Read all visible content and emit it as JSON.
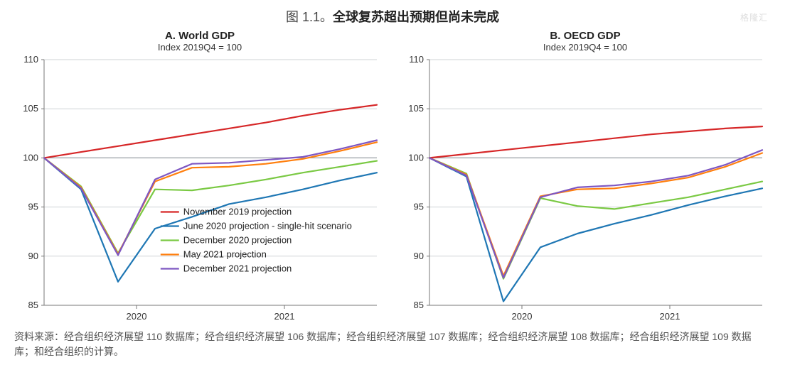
{
  "figure": {
    "prefix": "图 1.1。",
    "title": "全球复苏超出预期但尚未完成"
  },
  "watermark": "格隆汇",
  "footnote": "资料来源：经合组织经济展望 110 数据库；经合组织经济展望 106 数据库；经合组织经济展望 107 数据库；经合组织经济展望 108 数据库；经合组织经济展望 109 数据库；和经合组织的计算。",
  "chart_style": {
    "background_color": "#ffffff",
    "axis_color": "#777777",
    "grid_color": "#cfd3d6",
    "ref_line_color": "#9aa0a4",
    "tick_font_size": 13,
    "tick_color": "#333333",
    "legend_font_size": 13,
    "legend_text_color": "#222222",
    "line_width": 2.2,
    "ylim": [
      85,
      110
    ],
    "ytick_step": 5,
    "reference_y": 100,
    "domain_n": 9,
    "x_tick_positions": [
      2.5,
      6.5
    ],
    "x_tick_labels": [
      "2020",
      "2021"
    ]
  },
  "series_meta": [
    {
      "key": "nov2019",
      "label": "November 2019 projection",
      "color": "#d62728"
    },
    {
      "key": "jun2020",
      "label": "June 2020 projection - single-hit scenario",
      "color": "#1f77b4"
    },
    {
      "key": "dec2020",
      "label": "December 2020 projection",
      "color": "#7ac943"
    },
    {
      "key": "may2021",
      "label": "May 2021 projection",
      "color": "#ff7f0e"
    },
    {
      "key": "dec2021",
      "label": "December 2021 projection",
      "color": "#7e57c2"
    }
  ],
  "panels": [
    {
      "id": "world",
      "title": "A. World GDP",
      "subtitle": "Index 2019Q4 = 100",
      "show_legend": true,
      "series": {
        "nov2019": [
          100,
          100.6,
          101.2,
          101.8,
          102.4,
          103.0,
          103.6,
          104.3,
          104.9,
          105.4
        ],
        "jun2020": [
          100,
          96.8,
          87.4,
          92.8,
          94.0,
          95.3,
          96.0,
          96.8,
          97.7,
          98.5
        ],
        "dec2020": [
          100,
          97.1,
          90.3,
          96.8,
          96.7,
          97.2,
          97.8,
          98.5,
          99.1,
          99.7
        ],
        "may2021": [
          100,
          97.0,
          90.2,
          97.6,
          99.0,
          99.1,
          99.4,
          99.9,
          100.7,
          101.6
        ],
        "dec2021": [
          100,
          96.9,
          90.1,
          97.8,
          99.4,
          99.5,
          99.8,
          100.1,
          100.9,
          101.8
        ]
      }
    },
    {
      "id": "oecd",
      "title": "B. OECD GDP",
      "subtitle": "Index 2019Q4 = 100",
      "show_legend": false,
      "series": {
        "nov2019": [
          100,
          100.4,
          100.8,
          101.2,
          101.6,
          102.0,
          102.4,
          102.7,
          103.0,
          103.2
        ],
        "jun2020": [
          100,
          98.1,
          85.4,
          90.9,
          92.3,
          93.3,
          94.2,
          95.2,
          96.1,
          96.9
        ],
        "dec2020": [
          100,
          98.4,
          87.7,
          95.9,
          95.1,
          94.8,
          95.4,
          96.0,
          96.8,
          97.6
        ],
        "may2021": [
          100,
          98.3,
          88.0,
          96.1,
          96.8,
          96.9,
          97.4,
          98.0,
          99.1,
          100.5
        ],
        "dec2021": [
          100,
          98.2,
          87.8,
          96.0,
          97.0,
          97.2,
          97.6,
          98.2,
          99.3,
          100.8
        ]
      }
    }
  ]
}
